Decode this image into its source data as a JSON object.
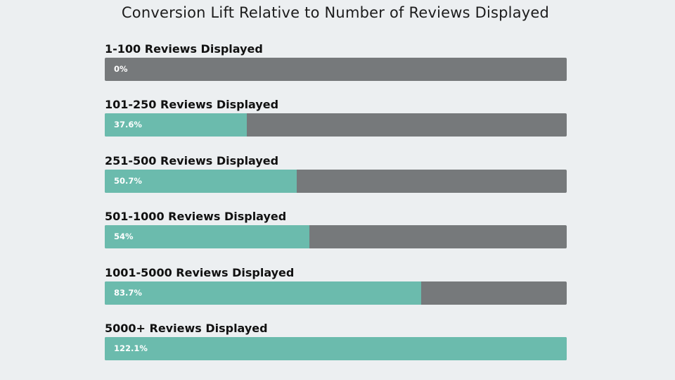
{
  "chart_data": {
    "type": "bar",
    "orientation": "horizontal",
    "title": "Conversion Lift Relative to Number of Reviews Displayed",
    "categories": [
      "1-100 Reviews Displayed",
      "101-250 Reviews Displayed",
      "251-500 Reviews Displayed",
      "501-1000 Reviews Displayed",
      "1001-5000 Reviews Displayed",
      "5000+ Reviews Displayed"
    ],
    "values": [
      0,
      37.6,
      50.7,
      54,
      83.7,
      122.1
    ],
    "value_labels": [
      "0%",
      "37.6%",
      "50.7%",
      "54%",
      "83.7%",
      "122.1%"
    ],
    "xlim": [
      0,
      122.1
    ],
    "grid": false
  },
  "colors": {
    "fill": "#6bbbad",
    "track": "#76797b",
    "background": "#eceff1"
  }
}
